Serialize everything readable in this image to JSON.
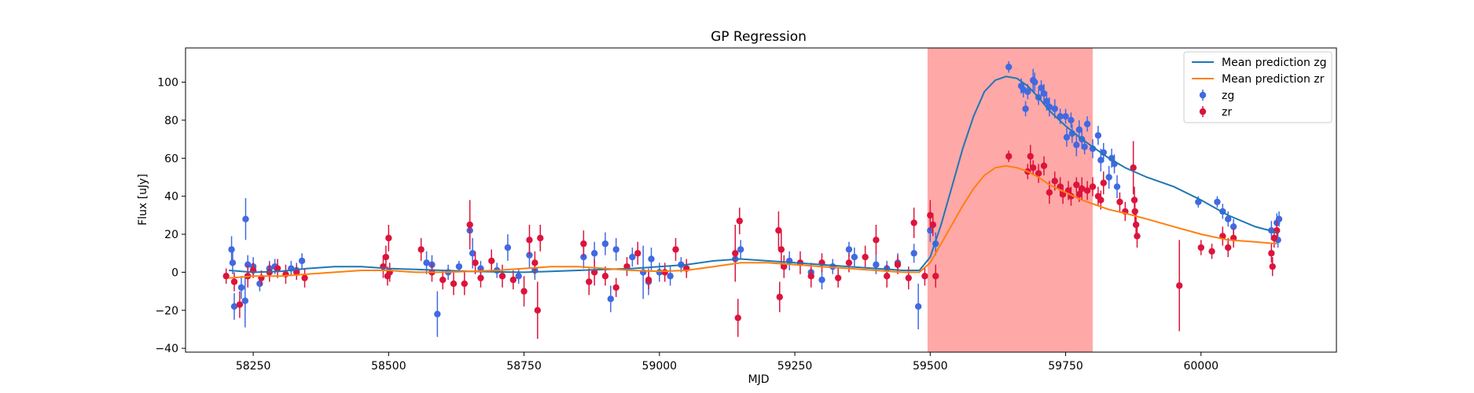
{
  "chart_data": {
    "type": "scatter",
    "title": "GP Regression",
    "xlabel": "MJD",
    "ylabel": "Flux [uJy]",
    "xlim": [
      58125,
      60250
    ],
    "ylim": [
      -42,
      118
    ],
    "xticks": [
      58250,
      58500,
      58750,
      59000,
      59250,
      59500,
      59750,
      60000
    ],
    "yticks": [
      -40,
      -20,
      0,
      20,
      40,
      60,
      80,
      100
    ],
    "shaded_region": {
      "x_start": 59495,
      "x_end": 59800,
      "color": "#ffa8a8"
    },
    "legend_position": "top-right",
    "colors": {
      "zg_line": "#1f77b4",
      "zr_line": "#ff7f0e",
      "zg_points": "#4169e1",
      "zr_points": "#dc143c"
    },
    "series": [
      {
        "name": "Mean prediction zg",
        "kind": "line",
        "color": "#1f77b4",
        "x": [
          58205,
          58250,
          58300,
          58350,
          58400,
          58450,
          58500,
          58550,
          58600,
          58650,
          58700,
          58750,
          58800,
          58850,
          58900,
          58950,
          59000,
          59050,
          59100,
          59150,
          59200,
          59250,
          59300,
          59350,
          59400,
          59450,
          59480,
          59500,
          59520,
          59540,
          59560,
          59580,
          59600,
          59620,
          59640,
          59660,
          59680,
          59700,
          59720,
          59750,
          59780,
          59800,
          59830,
          59860,
          59900,
          59950,
          60000,
          60050,
          60100,
          60140
        ],
        "y": [
          1,
          0,
          0.5,
          2,
          3,
          3,
          2,
          1.5,
          1,
          0.5,
          0.2,
          0,
          0.5,
          1,
          1.5,
          2,
          3,
          4,
          6,
          7,
          6,
          5,
          4,
          3,
          2,
          1,
          1,
          8,
          25,
          45,
          65,
          82,
          95,
          101,
          103,
          102,
          98,
          92,
          85,
          77,
          70,
          66,
          60,
          55,
          50,
          45,
          38,
          30,
          24,
          21
        ]
      },
      {
        "name": "Mean prediction zr",
        "kind": "line",
        "color": "#ff7f0e",
        "x": [
          58205,
          58250,
          58300,
          58350,
          58400,
          58450,
          58500,
          58550,
          58600,
          58650,
          58700,
          58750,
          58800,
          58850,
          58900,
          58950,
          59000,
          59050,
          59100,
          59150,
          59200,
          59250,
          59300,
          59350,
          59400,
          59450,
          59480,
          59500,
          59520,
          59540,
          59560,
          59580,
          59600,
          59620,
          59640,
          59660,
          59680,
          59700,
          59720,
          59750,
          59780,
          59800,
          59830,
          59860,
          59900,
          59950,
          60000,
          60050,
          60100,
          60140
        ],
        "y": [
          -3,
          -2,
          -2,
          -1,
          0,
          1,
          1,
          0,
          0,
          0.5,
          1,
          2,
          3,
          3,
          2,
          1,
          0.5,
          1,
          3,
          5,
          5,
          4,
          3,
          2,
          1,
          0,
          0,
          5,
          15,
          25,
          35,
          44,
          51,
          55,
          56,
          55,
          53,
          50,
          46,
          42,
          38,
          36,
          33,
          31,
          28,
          24,
          20,
          17,
          16,
          15
        ]
      },
      {
        "name": "zg",
        "kind": "errorbar",
        "color": "#4169e1",
        "points": [
          [
            58210,
            12,
            7
          ],
          [
            58212,
            5,
            6
          ],
          [
            58215,
            -18,
            7
          ],
          [
            58228,
            -8,
            6
          ],
          [
            58235,
            -15,
            14
          ],
          [
            58236,
            28,
            11
          ],
          [
            58240,
            4,
            5
          ],
          [
            58250,
            3,
            5
          ],
          [
            58262,
            -6,
            4
          ],
          [
            58280,
            2,
            4
          ],
          [
            58290,
            3,
            4
          ],
          [
            58320,
            2,
            4
          ],
          [
            58330,
            1,
            4
          ],
          [
            58340,
            6,
            4
          ],
          [
            58570,
            5,
            6
          ],
          [
            58580,
            4,
            5
          ],
          [
            58590,
            -22,
            12
          ],
          [
            58610,
            0,
            4
          ],
          [
            58630,
            3,
            3
          ],
          [
            58650,
            22,
            6
          ],
          [
            58655,
            10,
            8
          ],
          [
            58670,
            2,
            4
          ],
          [
            58700,
            1,
            4
          ],
          [
            58720,
            13,
            7
          ],
          [
            58740,
            -2,
            4
          ],
          [
            58760,
            9,
            7
          ],
          [
            58770,
            1,
            5
          ],
          [
            58860,
            8,
            6
          ],
          [
            58880,
            10,
            6
          ],
          [
            58900,
            15,
            6
          ],
          [
            58910,
            -14,
            7
          ],
          [
            58920,
            12,
            6
          ],
          [
            58950,
            8,
            5
          ],
          [
            58970,
            0,
            14
          ],
          [
            58980,
            -5,
            7
          ],
          [
            58985,
            7,
            6
          ],
          [
            59000,
            0,
            5
          ],
          [
            59020,
            -2,
            5
          ],
          [
            59040,
            4,
            4
          ],
          [
            59140,
            7,
            5
          ],
          [
            59150,
            12,
            5
          ],
          [
            59240,
            6,
            5
          ],
          [
            59280,
            0,
            5
          ],
          [
            59300,
            -4,
            5
          ],
          [
            59320,
            3,
            4
          ],
          [
            59350,
            12,
            4
          ],
          [
            59360,
            8,
            5
          ],
          [
            59400,
            4,
            5
          ],
          [
            59420,
            2,
            4
          ],
          [
            59440,
            5,
            5
          ],
          [
            59470,
            10,
            5
          ],
          [
            59478,
            -18,
            12
          ],
          [
            59500,
            22,
            6
          ],
          [
            59510,
            15,
            6
          ],
          [
            59645,
            108,
            3
          ],
          [
            59668,
            98,
            4
          ],
          [
            59672,
            96,
            4
          ],
          [
            59676,
            86,
            4
          ],
          [
            59680,
            95,
            4
          ],
          [
            59690,
            101,
            6
          ],
          [
            59693,
            100,
            5
          ],
          [
            59700,
            92,
            4
          ],
          [
            59705,
            97,
            4
          ],
          [
            59710,
            94,
            5
          ],
          [
            59715,
            90,
            5
          ],
          [
            59720,
            87,
            5
          ],
          [
            59730,
            86,
            5
          ],
          [
            59740,
            82,
            4
          ],
          [
            59750,
            82,
            4
          ],
          [
            59752,
            71,
            5
          ],
          [
            59760,
            80,
            4
          ],
          [
            59762,
            73,
            5
          ],
          [
            59770,
            67,
            6
          ],
          [
            59775,
            75,
            5
          ],
          [
            59780,
            70,
            5
          ],
          [
            59785,
            66,
            4
          ],
          [
            59790,
            78,
            4
          ],
          [
            59800,
            65,
            5
          ],
          [
            59810,
            72,
            5
          ],
          [
            59815,
            59,
            6
          ],
          [
            59820,
            63,
            5
          ],
          [
            59830,
            50,
            6
          ],
          [
            59835,
            60,
            5
          ],
          [
            59840,
            57,
            5
          ],
          [
            59845,
            45,
            6
          ],
          [
            59995,
            37,
            3
          ],
          [
            60030,
            37,
            3
          ],
          [
            60040,
            32,
            4
          ],
          [
            60050,
            28,
            4
          ],
          [
            60060,
            24,
            4
          ],
          [
            60130,
            22,
            5
          ],
          [
            60140,
            26,
            5
          ],
          [
            60142,
            17,
            4
          ],
          [
            60144,
            28,
            4
          ]
        ]
      },
      {
        "name": "zr",
        "kind": "errorbar",
        "color": "#dc143c",
        "points": [
          [
            58200,
            -2,
            4
          ],
          [
            58215,
            -5,
            5
          ],
          [
            58225,
            -17,
            7
          ],
          [
            58240,
            -2,
            6
          ],
          [
            58250,
            1,
            4
          ],
          [
            58265,
            -3,
            4
          ],
          [
            58280,
            0,
            5
          ],
          [
            58295,
            2,
            5
          ],
          [
            58310,
            -1,
            5
          ],
          [
            58330,
            0,
            4
          ],
          [
            58345,
            -3,
            5
          ],
          [
            58490,
            3,
            6
          ],
          [
            58495,
            8,
            6
          ],
          [
            58500,
            18,
            7
          ],
          [
            58498,
            -2,
            5
          ],
          [
            58502,
            0,
            5
          ],
          [
            58560,
            12,
            6
          ],
          [
            58580,
            0,
            5
          ],
          [
            58600,
            -4,
            5
          ],
          [
            58620,
            -6,
            6
          ],
          [
            58640,
            -6,
            6
          ],
          [
            58650,
            25,
            13
          ],
          [
            58660,
            5,
            6
          ],
          [
            58670,
            -3,
            5
          ],
          [
            58690,
            6,
            6
          ],
          [
            58710,
            -2,
            6
          ],
          [
            58730,
            -4,
            5
          ],
          [
            58750,
            -10,
            8
          ],
          [
            58760,
            17,
            8
          ],
          [
            58770,
            5,
            6
          ],
          [
            58775,
            -20,
            15
          ],
          [
            58780,
            18,
            7
          ],
          [
            58860,
            15,
            7
          ],
          [
            58870,
            -5,
            7
          ],
          [
            58880,
            0,
            7
          ],
          [
            58900,
            -2,
            5
          ],
          [
            58920,
            -8,
            5
          ],
          [
            58940,
            3,
            5
          ],
          [
            58960,
            10,
            6
          ],
          [
            58980,
            -4,
            5
          ],
          [
            59010,
            0,
            5
          ],
          [
            59030,
            12,
            6
          ],
          [
            59050,
            2,
            5
          ],
          [
            59140,
            10,
            15
          ],
          [
            59145,
            -24,
            10
          ],
          [
            59148,
            27,
            7
          ],
          [
            59220,
            22,
            10
          ],
          [
            59222,
            -13,
            8
          ],
          [
            59225,
            12,
            10
          ],
          [
            59230,
            3,
            6
          ],
          [
            59260,
            5,
            6
          ],
          [
            59280,
            -2,
            6
          ],
          [
            59300,
            5,
            5
          ],
          [
            59330,
            -3,
            5
          ],
          [
            59350,
            5,
            5
          ],
          [
            59380,
            8,
            6
          ],
          [
            59400,
            17,
            8
          ],
          [
            59420,
            -2,
            6
          ],
          [
            59440,
            4,
            5
          ],
          [
            59460,
            -3,
            6
          ],
          [
            59470,
            26,
            8
          ],
          [
            59490,
            -2,
            5
          ],
          [
            59500,
            30,
            8
          ],
          [
            59505,
            25,
            6
          ],
          [
            59510,
            -2,
            6
          ],
          [
            59645,
            61,
            3
          ],
          [
            59680,
            53,
            4
          ],
          [
            59685,
            61,
            6
          ],
          [
            59690,
            55,
            4
          ],
          [
            59700,
            52,
            5
          ],
          [
            59710,
            56,
            5
          ],
          [
            59720,
            42,
            6
          ],
          [
            59730,
            48,
            5
          ],
          [
            59740,
            45,
            5
          ],
          [
            59745,
            41,
            5
          ],
          [
            59755,
            43,
            5
          ],
          [
            59760,
            40,
            5
          ],
          [
            59770,
            46,
            4
          ],
          [
            59775,
            41,
            4
          ],
          [
            59780,
            44,
            6
          ],
          [
            59790,
            43,
            5
          ],
          [
            59800,
            45,
            5
          ],
          [
            59810,
            40,
            5
          ],
          [
            59815,
            38,
            5
          ],
          [
            59820,
            47,
            6
          ],
          [
            59850,
            37,
            5
          ],
          [
            59860,
            32,
            5
          ],
          [
            59875,
            55,
            14
          ],
          [
            59877,
            38,
            7
          ],
          [
            59878,
            32,
            6
          ],
          [
            59880,
            25,
            6
          ],
          [
            59882,
            19,
            6
          ],
          [
            59960,
            -7,
            24
          ],
          [
            60000,
            13,
            4
          ],
          [
            60020,
            11,
            4
          ],
          [
            60040,
            19,
            5
          ],
          [
            60050,
            13,
            5
          ],
          [
            60060,
            18,
            5
          ],
          [
            60130,
            10,
            5
          ],
          [
            60132,
            3,
            5
          ],
          [
            60135,
            18,
            5
          ],
          [
            60140,
            22,
            5
          ]
        ]
      }
    ]
  }
}
